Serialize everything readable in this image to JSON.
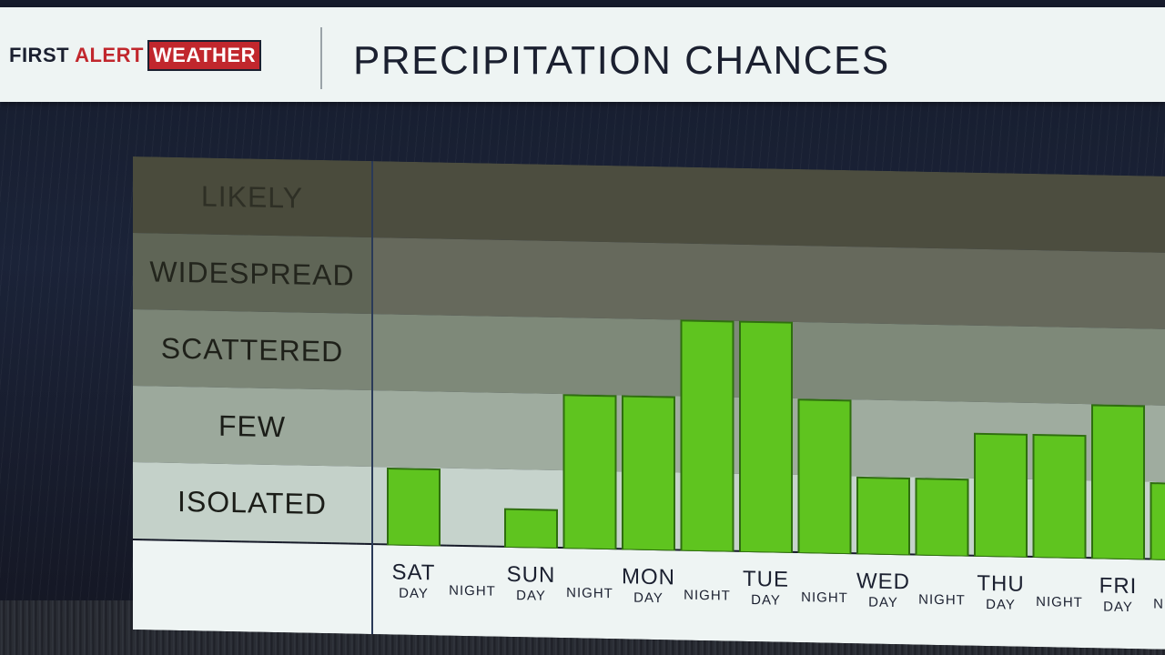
{
  "header": {
    "logo_first": "FIRST",
    "logo_alert": "ALERT",
    "logo_weather": "WEATHER",
    "title": "PRECIPITATION CHANCES"
  },
  "colors": {
    "bar_fill": "#5fc41f",
    "bar_edge": "#2f6e0f",
    "brand_red": "#c1272d"
  },
  "chart_data": {
    "type": "bar",
    "title": "PRECIPITATION CHANCES",
    "y_categories": [
      "LIKELY",
      "WIDESPREAD",
      "SCATTERED",
      "FEW",
      "ISOLATED"
    ],
    "categories": [
      {
        "day": "SAT",
        "period": "DAY"
      },
      {
        "day": "",
        "period": "NIGHT"
      },
      {
        "day": "SUN",
        "period": "DAY"
      },
      {
        "day": "",
        "period": "NIGHT"
      },
      {
        "day": "MON",
        "period": "DAY"
      },
      {
        "day": "",
        "period": "NIGHT"
      },
      {
        "day": "TUE",
        "period": "DAY"
      },
      {
        "day": "",
        "period": "NIGHT"
      },
      {
        "day": "WED",
        "period": "DAY"
      },
      {
        "day": "",
        "period": "NIGHT"
      },
      {
        "day": "THU",
        "period": "DAY"
      },
      {
        "day": "",
        "period": "NIGHT"
      },
      {
        "day": "FRI",
        "period": "DAY"
      },
      {
        "day": "",
        "period": "NIGHT"
      }
    ],
    "values": [
      1.0,
      0,
      0.5,
      2.0,
      2.0,
      3.0,
      3.0,
      2.0,
      1.0,
      1.0,
      1.6,
      1.6,
      2.0,
      1.0
    ],
    "ylim": [
      0,
      5
    ],
    "grid": true
  }
}
